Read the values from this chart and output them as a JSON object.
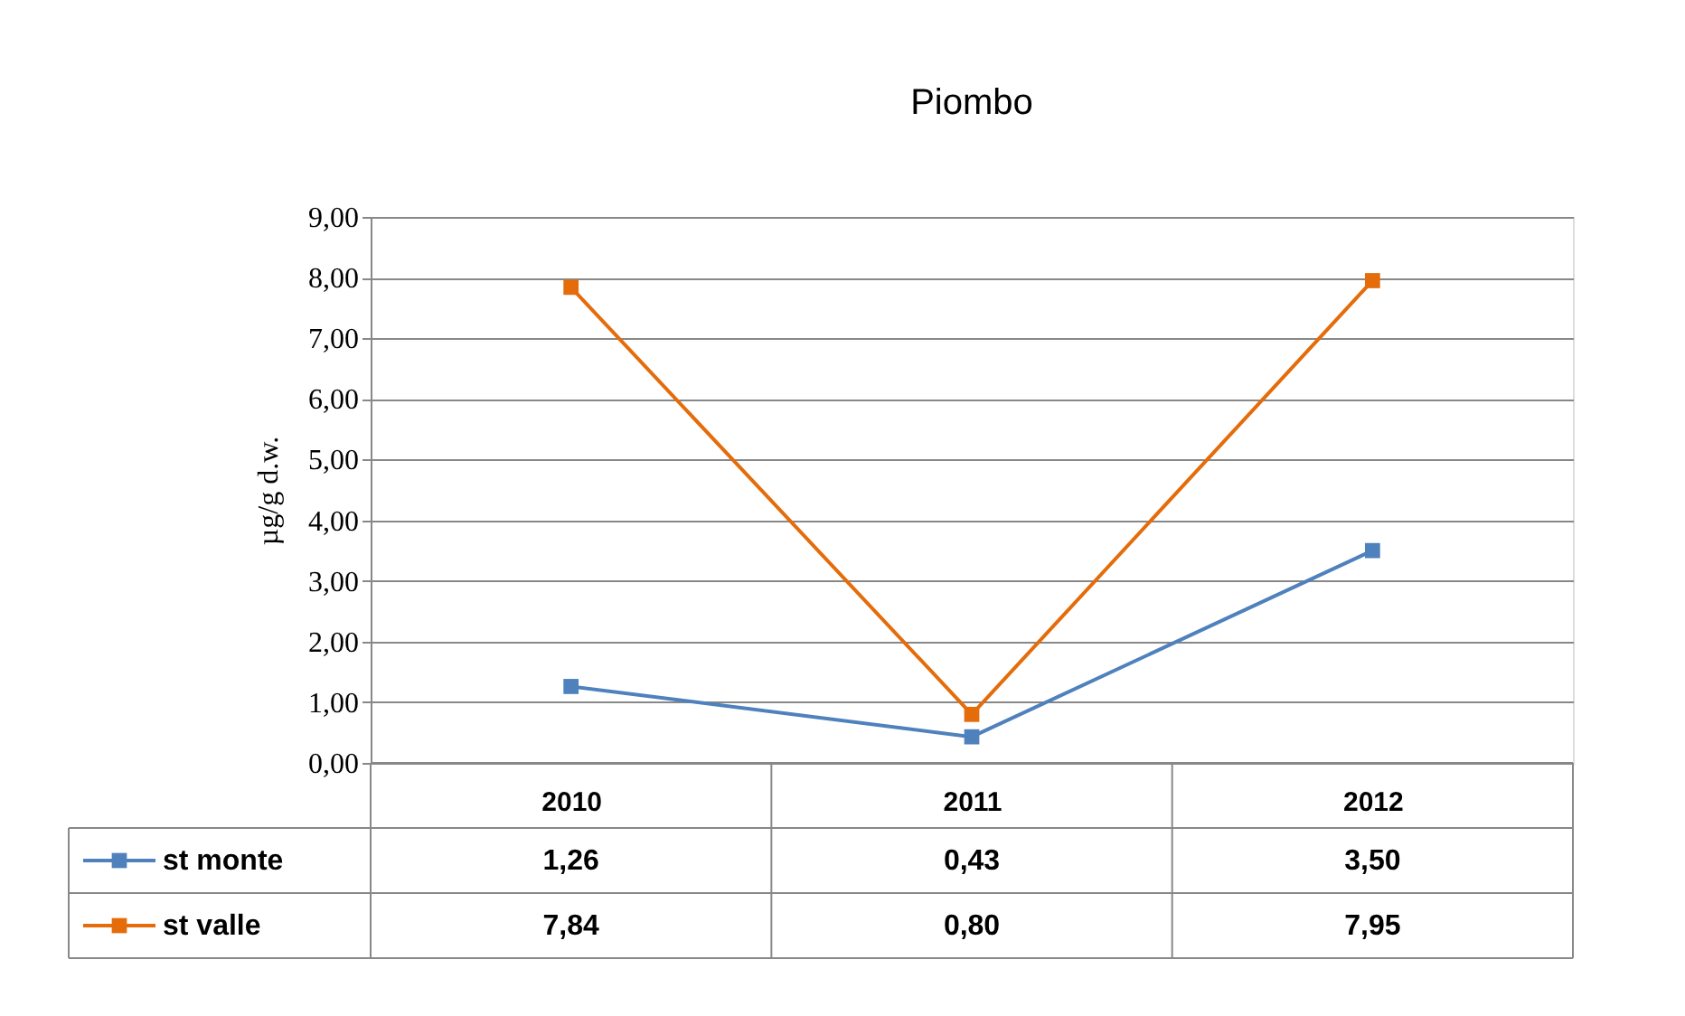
{
  "chart_data": {
    "type": "line",
    "title": "Piombo",
    "ylabel": "µg/g d.w.",
    "categories": [
      "2010",
      "2011",
      "2012"
    ],
    "series": [
      {
        "name": "st monte",
        "color": "#4f81bd",
        "values": [
          1.26,
          0.43,
          3.5
        ],
        "value_labels": [
          "1,26",
          "0,43",
          "3,50"
        ]
      },
      {
        "name": "st valle",
        "color": "#e46c0a",
        "values": [
          7.84,
          0.8,
          7.95
        ],
        "value_labels": [
          "7,84",
          "0,80",
          "7,95"
        ]
      }
    ],
    "ylim": [
      0,
      9
    ],
    "yticks": [
      {
        "value": 0,
        "label": "0,00"
      },
      {
        "value": 1,
        "label": "1,00"
      },
      {
        "value": 2,
        "label": "2,00"
      },
      {
        "value": 3,
        "label": "3,00"
      },
      {
        "value": 4,
        "label": "4,00"
      },
      {
        "value": 5,
        "label": "5,00"
      },
      {
        "value": 6,
        "label": "6,00"
      },
      {
        "value": 7,
        "label": "7,00"
      },
      {
        "value": 8,
        "label": "8,00"
      },
      {
        "value": 9,
        "label": "9,00"
      }
    ],
    "grid": "y",
    "marker": "square",
    "line_style": "solid",
    "legend": "bottom left"
  }
}
